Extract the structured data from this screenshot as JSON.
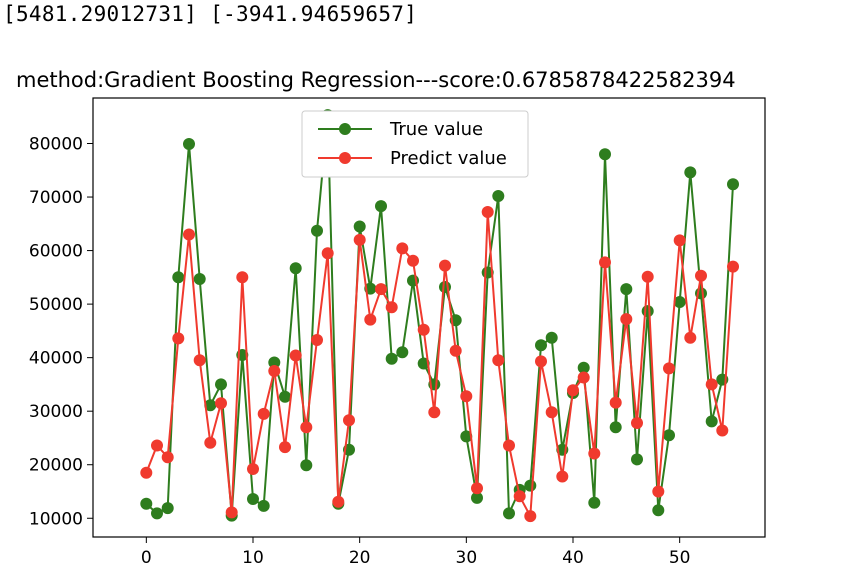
{
  "output": {
    "line": "[5481.29012731] [-3941.94659657]"
  },
  "chart_data": {
    "type": "line",
    "title": "method:Gradient Boosting Regression---score:0.6785878422582394",
    "xlabel": "",
    "ylabel": "",
    "xlim": [
      -5,
      58
    ],
    "ylim": [
      6500,
      88500
    ],
    "xticks": [
      0,
      10,
      20,
      30,
      40,
      50
    ],
    "yticks": [
      10000,
      20000,
      30000,
      40000,
      50000,
      60000,
      70000,
      80000
    ],
    "grid": false,
    "legend_position": "top-center",
    "x": [
      0,
      1,
      2,
      3,
      4,
      5,
      6,
      7,
      8,
      9,
      10,
      11,
      12,
      13,
      14,
      15,
      16,
      17,
      18,
      19,
      20,
      21,
      22,
      23,
      24,
      25,
      26,
      27,
      28,
      29,
      30,
      31,
      32,
      33,
      34,
      35,
      36,
      37,
      38,
      39,
      40,
      41,
      42,
      43,
      44,
      45,
      46,
      47,
      48,
      49,
      50,
      51,
      52,
      53,
      54,
      55
    ],
    "series": [
      {
        "name": "True value",
        "color": "#2e7d1e",
        "marker": "circle",
        "values": [
          12700,
          10900,
          11900,
          55000,
          79900,
          54700,
          31100,
          35000,
          10500,
          40500,
          13600,
          12300,
          39100,
          32700,
          56700,
          19900,
          63700,
          85300,
          12700,
          22800,
          64500,
          52900,
          68300,
          39800,
          41000,
          54400,
          38900,
          35000,
          53200,
          47000,
          25300,
          13800,
          55900,
          70200,
          10900,
          15300,
          16100,
          42300,
          43700,
          22800,
          33400,
          38100,
          12900,
          78000,
          27000,
          52800,
          21000,
          48700,
          11500,
          25500,
          50400,
          74600,
          52000,
          28100,
          35900,
          72400
        ]
      },
      {
        "name": "Predict value",
        "color": "#f03a2e",
        "marker": "circle",
        "values": [
          18500,
          23600,
          21400,
          43600,
          63000,
          39500,
          24100,
          31500,
          11100,
          55000,
          19200,
          29500,
          37500,
          23300,
          40400,
          27000,
          43300,
          59500,
          13100,
          28300,
          62000,
          47100,
          52800,
          49400,
          60400,
          58100,
          45200,
          29800,
          57200,
          41300,
          32800,
          15600,
          67200,
          39500,
          23600,
          14100,
          10400,
          39300,
          29800,
          17800,
          33900,
          36300,
          22100,
          57800,
          31600,
          47200,
          27800,
          55100,
          15000,
          38000,
          61900,
          43700,
          55300,
          35000,
          26400,
          57000
        ]
      }
    ]
  }
}
